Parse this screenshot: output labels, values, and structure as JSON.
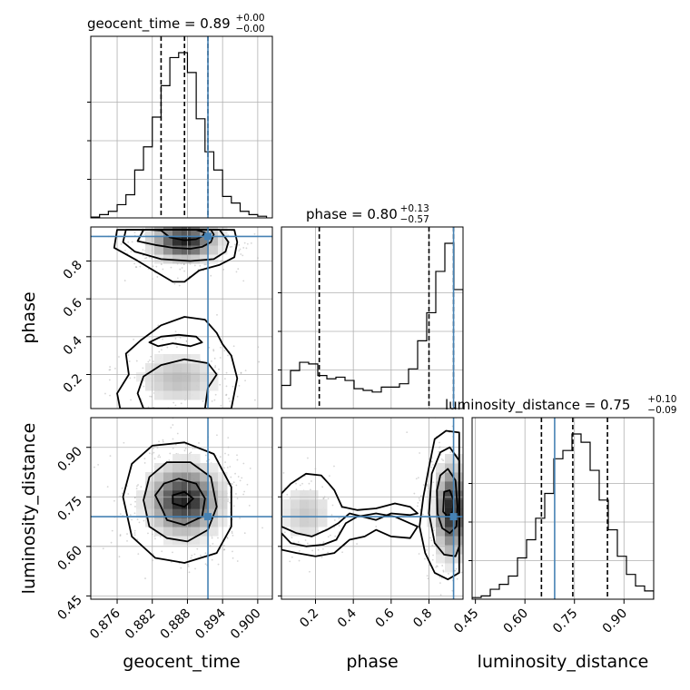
{
  "chart_data": {
    "type": "corner",
    "parameters": [
      "geocent_time",
      "phase",
      "luminosity_distance"
    ],
    "axis_labels": {
      "geocent_time": "geocent_time",
      "phase": "phase",
      "luminosity_distance": "luminosity_distance"
    },
    "ranges": {
      "geocent_time": [
        0.8715,
        0.9025
      ],
      "phase": [
        0.02,
        0.98
      ],
      "luminosity_distance": [
        0.44,
        0.99
      ]
    },
    "ticks": {
      "geocent_time": [
        "0.876",
        "0.882",
        "0.888",
        "0.894",
        "0.900"
      ],
      "phase": [
        "0.2",
        "0.4",
        "0.6",
        "0.8"
      ],
      "luminosity_distance": [
        "0.45",
        "0.60",
        "0.75",
        "0.90"
      ]
    },
    "truths": {
      "geocent_time": 0.8915,
      "phase": 0.93,
      "luminosity_distance": 0.69
    },
    "truth_color": "#4682b4",
    "summaries": [
      {
        "param": "geocent_time",
        "label": "geocent_time = 0.89",
        "plus": "+0.00",
        "minus": "−0.00"
      },
      {
        "param": "phase",
        "label": "phase = 0.80",
        "plus": "+0.13",
        "minus": "−0.57"
      },
      {
        "param": "luminosity_distance",
        "label": "luminosity_distance = 0.75",
        "plus": "+0.10",
        "minus": "−0.09"
      }
    ],
    "quantiles": {
      "geocent_time": [
        0.8835,
        0.8875,
        0.8915
      ],
      "phase": [
        0.22,
        0.8,
        0.93
      ],
      "luminosity_distance": [
        0.65,
        0.745,
        0.85
      ]
    },
    "histograms": {
      "geocent_time": {
        "edges": [
          0.8715,
          0.873,
          0.8745,
          0.876,
          0.8775,
          0.879,
          0.8805,
          0.882,
          0.8835,
          0.885,
          0.8865,
          0.888,
          0.8895,
          0.891,
          0.8925,
          0.894,
          0.8955,
          0.897,
          0.8985,
          0.9,
          0.9015
        ],
        "counts": [
          0.005,
          0.02,
          0.04,
          0.08,
          0.14,
          0.29,
          0.43,
          0.61,
          0.8,
          0.97,
          1.0,
          0.88,
          0.6,
          0.4,
          0.29,
          0.13,
          0.09,
          0.04,
          0.02,
          0.01
        ]
      },
      "phase": {
        "edges": [
          0.02,
          0.068,
          0.116,
          0.164,
          0.212,
          0.26,
          0.308,
          0.356,
          0.404,
          0.452,
          0.5,
          0.548,
          0.596,
          0.644,
          0.692,
          0.74,
          0.788,
          0.836,
          0.884,
          0.932,
          0.98
        ],
        "counts": [
          0.14,
          0.23,
          0.28,
          0.27,
          0.2,
          0.18,
          0.19,
          0.17,
          0.12,
          0.11,
          0.1,
          0.13,
          0.13,
          0.15,
          0.24,
          0.41,
          0.58,
          0.83,
          1.0,
          0.72
        ]
      },
      "luminosity_distance": {
        "edges": [
          0.44,
          0.4675,
          0.495,
          0.5225,
          0.55,
          0.5775,
          0.605,
          0.6325,
          0.66,
          0.6875,
          0.715,
          0.7425,
          0.77,
          0.7975,
          0.825,
          0.8525,
          0.88,
          0.9075,
          0.935,
          0.9625,
          0.99
        ],
        "counts": [
          0.01,
          0.02,
          0.06,
          0.09,
          0.14,
          0.25,
          0.36,
          0.49,
          0.64,
          0.85,
          0.9,
          1.0,
          0.95,
          0.78,
          0.6,
          0.42,
          0.26,
          0.15,
          0.08,
          0.05
        ]
      }
    },
    "contours_2d": {
      "geocent_time__phase": [
        [
          [
            0.8815,
            0.965
          ],
          [
            0.8835,
            0.962
          ],
          [
            0.885,
            0.925
          ],
          [
            0.8875,
            0.91
          ],
          [
            0.8895,
            0.915
          ],
          [
            0.8905,
            0.93
          ],
          [
            0.891,
            0.95
          ],
          [
            0.8895,
            0.965
          ]
        ],
        [
          [
            0.8805,
            0.965
          ],
          [
            0.8795,
            0.905
          ],
          [
            0.8825,
            0.885
          ],
          [
            0.8855,
            0.87
          ],
          [
            0.8885,
            0.865
          ],
          [
            0.8905,
            0.875
          ],
          [
            0.892,
            0.9
          ],
          [
            0.8925,
            0.94
          ],
          [
            0.892,
            0.965
          ]
        ],
        [
          [
            0.8775,
            0.965
          ],
          [
            0.877,
            0.9
          ],
          [
            0.879,
            0.85
          ],
          [
            0.8835,
            0.81
          ],
          [
            0.8885,
            0.8
          ],
          [
            0.8925,
            0.81
          ],
          [
            0.8945,
            0.85
          ],
          [
            0.895,
            0.9
          ],
          [
            0.8935,
            0.965
          ]
        ],
        [
          [
            0.876,
            0.965
          ],
          [
            0.8755,
            0.87
          ],
          [
            0.879,
            0.81
          ],
          [
            0.8825,
            0.745
          ],
          [
            0.8855,
            0.69
          ],
          [
            0.8875,
            0.69
          ],
          [
            0.89,
            0.75
          ],
          [
            0.8935,
            0.78
          ],
          [
            0.896,
            0.82
          ],
          [
            0.8965,
            0.9
          ],
          [
            0.896,
            0.965
          ]
        ],
        [
          [
            0.8835,
            0.4
          ],
          [
            0.8865,
            0.41
          ],
          [
            0.8895,
            0.4
          ],
          [
            0.8905,
            0.37
          ],
          [
            0.8885,
            0.35
          ],
          [
            0.8855,
            0.365
          ],
          [
            0.883,
            0.35
          ],
          [
            0.8815,
            0.37
          ]
        ],
        [
          [
            0.8805,
            0.02
          ],
          [
            0.8795,
            0.1
          ],
          [
            0.8805,
            0.19
          ],
          [
            0.8835,
            0.25
          ],
          [
            0.8875,
            0.28
          ],
          [
            0.8915,
            0.26
          ],
          [
            0.893,
            0.2
          ],
          [
            0.8915,
            0.13
          ],
          [
            0.891,
            0.02
          ]
        ],
        [
          [
            0.8765,
            0.02
          ],
          [
            0.876,
            0.1
          ],
          [
            0.878,
            0.2
          ],
          [
            0.8775,
            0.31
          ],
          [
            0.88,
            0.38
          ],
          [
            0.8835,
            0.46
          ],
          [
            0.8875,
            0.505
          ],
          [
            0.891,
            0.49
          ],
          [
            0.893,
            0.42
          ],
          [
            0.894,
            0.36
          ],
          [
            0.8955,
            0.3
          ],
          [
            0.8965,
            0.18
          ],
          [
            0.8955,
            0.02
          ]
        ]
      ],
      "geocent_time__luminosity_distance": [
        [
          [
            0.8855,
            0.73
          ],
          [
            0.8875,
            0.72
          ],
          [
            0.889,
            0.745
          ],
          [
            0.8875,
            0.765
          ],
          [
            0.8855,
            0.755
          ]
        ],
        [
          [
            0.8835,
            0.72
          ],
          [
            0.8845,
            0.68
          ],
          [
            0.8875,
            0.665
          ],
          [
            0.8905,
            0.69
          ],
          [
            0.891,
            0.745
          ],
          [
            0.8895,
            0.79
          ],
          [
            0.8865,
            0.805
          ],
          [
            0.884,
            0.79
          ],
          [
            0.8825,
            0.755
          ]
        ],
        [
          [
            0.8805,
            0.74
          ],
          [
            0.8815,
            0.66
          ],
          [
            0.8845,
            0.625
          ],
          [
            0.888,
            0.615
          ],
          [
            0.8915,
            0.65
          ],
          [
            0.893,
            0.72
          ],
          [
            0.892,
            0.81
          ],
          [
            0.8885,
            0.855
          ],
          [
            0.8845,
            0.855
          ],
          [
            0.8815,
            0.81
          ]
        ],
        [
          [
            0.877,
            0.75
          ],
          [
            0.8785,
            0.63
          ],
          [
            0.8825,
            0.565
          ],
          [
            0.8875,
            0.55
          ],
          [
            0.893,
            0.58
          ],
          [
            0.8955,
            0.66
          ],
          [
            0.8955,
            0.78
          ],
          [
            0.8925,
            0.88
          ],
          [
            0.8875,
            0.915
          ],
          [
            0.882,
            0.905
          ],
          [
            0.8785,
            0.85
          ]
        ]
      ],
      "phase__luminosity_distance": [
        [
          [
            0.875,
            0.705
          ],
          [
            0.9,
            0.69
          ],
          [
            0.925,
            0.705
          ],
          [
            0.93,
            0.74
          ],
          [
            0.91,
            0.77
          ],
          [
            0.88,
            0.765
          ]
        ],
        [
          [
            0.845,
            0.7
          ],
          [
            0.87,
            0.655
          ],
          [
            0.91,
            0.64
          ],
          [
            0.945,
            0.66
          ],
          [
            0.95,
            0.72
          ],
          [
            0.94,
            0.8
          ],
          [
            0.9,
            0.835
          ],
          [
            0.86,
            0.815
          ],
          [
            0.842,
            0.77
          ]
        ],
        [
          [
            0.8,
            0.7
          ],
          [
            0.83,
            0.61
          ],
          [
            0.88,
            0.575
          ],
          [
            0.94,
            0.57
          ],
          [
            0.96,
            0.6
          ],
          [
            0.96,
            0.86
          ],
          [
            0.91,
            0.9
          ],
          [
            0.86,
            0.885
          ],
          [
            0.815,
            0.82
          ]
        ],
        [
          [
            0.75,
            0.66
          ],
          [
            0.78,
            0.58
          ],
          [
            0.83,
            0.52
          ],
          [
            0.9,
            0.5
          ],
          [
            0.96,
            0.52
          ],
          [
            0.96,
            0.945
          ],
          [
            0.89,
            0.95
          ],
          [
            0.83,
            0.925
          ],
          [
            0.8,
            0.84
          ],
          [
            0.77,
            0.75
          ]
        ],
        [
          [
            0.02,
            0.64
          ],
          [
            0.07,
            0.61
          ],
          [
            0.15,
            0.6
          ],
          [
            0.24,
            0.605
          ],
          [
            0.31,
            0.62
          ],
          [
            0.36,
            0.67
          ],
          [
            0.42,
            0.69
          ],
          [
            0.52,
            0.7
          ],
          [
            0.62,
            0.69
          ],
          [
            0.7,
            0.67
          ],
          [
            0.74,
            0.66
          ],
          [
            0.7,
            0.625
          ],
          [
            0.6,
            0.63
          ],
          [
            0.52,
            0.65
          ],
          [
            0.46,
            0.63
          ],
          [
            0.38,
            0.62
          ],
          [
            0.3,
            0.58
          ],
          [
            0.2,
            0.57
          ],
          [
            0.1,
            0.58
          ],
          [
            0.02,
            0.59
          ]
        ],
        [
          [
            0.02,
            0.76
          ],
          [
            0.07,
            0.79
          ],
          [
            0.15,
            0.82
          ],
          [
            0.23,
            0.815
          ],
          [
            0.27,
            0.79
          ],
          [
            0.3,
            0.77
          ],
          [
            0.34,
            0.72
          ],
          [
            0.42,
            0.71
          ],
          [
            0.52,
            0.715
          ],
          [
            0.62,
            0.73
          ],
          [
            0.7,
            0.72
          ],
          [
            0.74,
            0.7
          ],
          [
            0.7,
            0.695
          ],
          [
            0.6,
            0.7
          ],
          [
            0.52,
            0.68
          ],
          [
            0.45,
            0.69
          ],
          [
            0.38,
            0.7
          ],
          [
            0.32,
            0.67
          ],
          [
            0.26,
            0.65
          ],
          [
            0.18,
            0.63
          ],
          [
            0.1,
            0.64
          ],
          [
            0.02,
            0.66
          ]
        ]
      ]
    },
    "density_blobs": {
      "geocent_time__phase": [
        {
          "x": 0.8875,
          "y": 0.91,
          "sx": 0.0032,
          "sy": 0.06,
          "w": 1.0
        },
        {
          "x": 0.8865,
          "y": 0.18,
          "sx": 0.004,
          "sy": 0.08,
          "w": 0.3
        }
      ],
      "geocent_time__luminosity_distance": [
        {
          "x": 0.8875,
          "y": 0.74,
          "sx": 0.0035,
          "sy": 0.06,
          "w": 1.0
        }
      ],
      "phase__luminosity_distance": [
        {
          "x": 0.92,
          "y": 0.71,
          "sx": 0.05,
          "sy": 0.08,
          "w": 1.0
        },
        {
          "x": 0.15,
          "y": 0.7,
          "sx": 0.08,
          "sy": 0.05,
          "w": 0.25
        }
      ]
    }
  }
}
